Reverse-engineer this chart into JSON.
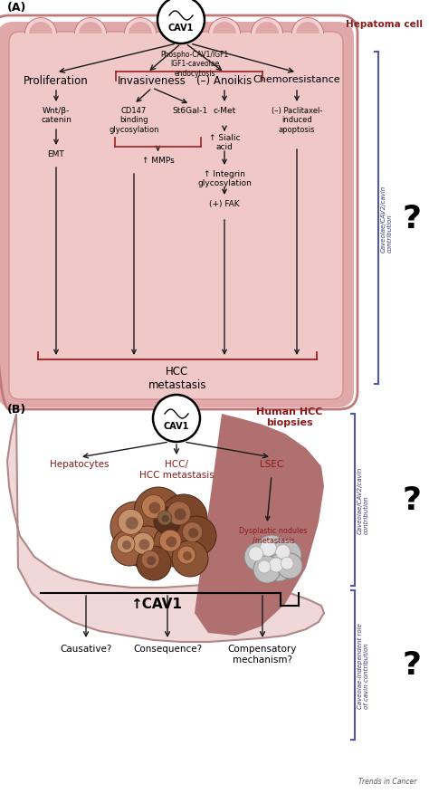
{
  "bg_color": "#ffffff",
  "panel_A": {
    "label": "(A)",
    "hepatoma_label": "Hepatoma cell",
    "cell_fill": "#e8b8b8",
    "cell_fill_inner": "#dba0a0",
    "cell_edge": "#c07878",
    "cell_white_outline": "#f5d5d5",
    "cav1_label": "CAV1",
    "phospho_label": "Phospho-CAV1/IGF1\nIGF1-caveolae\nendocytosis",
    "top_nodes": [
      "Proliferation",
      "Invasiveness",
      "(–) Anoikis",
      "Chemoresistance"
    ],
    "right_label": "Caveolae/CAV2/cavin\ncontribution",
    "question": "?",
    "bottom_label": "HCC\nmetastasis"
  },
  "panel_B": {
    "label": "(B)",
    "hcc_label": "Human HCC\nbiopsies",
    "cav1_label": "CAV1",
    "tissue_fill": "#f0d5d5",
    "tissue_edge": "#b08080",
    "dark_region_fill": "#b07070",
    "branch_labels": [
      "Hepatocytes",
      "HCC/\nHCC metastasis",
      "LSEC"
    ],
    "dysplastic_label": "Dysplastic nodules\n/metastasis",
    "up_cav1": "↑CAV1",
    "bottom_labels": [
      "Causative?",
      "Consequence?",
      "Compensatory\nmechanism?"
    ],
    "right_label1": "Caveolae/CAV2/cavin\ncontribution",
    "right_label2": "Caveolae-independent role\nof cavin contribution",
    "question1": "?",
    "question2": "?"
  },
  "red_text": "#8b1a1a",
  "dark_red_box": "#9b2020",
  "arrow_color": "#1a1a1a",
  "bracket_color": "#5555aa",
  "bracket_text_color": "#333377"
}
